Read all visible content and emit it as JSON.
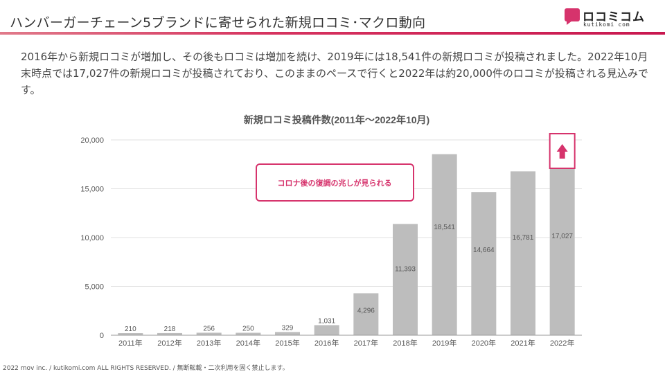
{
  "header": {
    "title": "ハンバーガーチェーン5ブランドに寄せられた新規ロコミ･マクロ動向",
    "logo_text": "ロコミコム",
    "logo_sub": "kutikomi com",
    "accent_color": "#d6336c"
  },
  "body": {
    "text": "2016年から新規ロコミが増加し、その後もロコミは増加を続け、2019年には18,541件の新規ロコミが投稿されました。2022年10月末時点では17,027件の新規ロコミが投稿されており、このままのペースで行くと2022年は約20,000件のロコミが投稿される見込みです。"
  },
  "chart_data": {
    "type": "bar",
    "title": "新規ロコミ投稿件数(2011年～2022年10月)",
    "categories": [
      "2011年",
      "2012年",
      "2013年",
      "2014年",
      "2015年",
      "2016年",
      "2017年",
      "2018年",
      "2019年",
      "2020年",
      "2021年",
      "2022年"
    ],
    "values": [
      210,
      218,
      256,
      250,
      329,
      1031,
      4296,
      11393,
      18541,
      14664,
      16781,
      17027
    ],
    "data_labels": [
      "210",
      "218",
      "256",
      "250",
      "329",
      "1,031",
      "4,296",
      "11,393",
      "18,541",
      "14,664",
      "16,781",
      "17,027"
    ],
    "ylim": [
      0,
      20000
    ],
    "yticks": [
      0,
      5000,
      10000,
      15000,
      20000
    ],
    "ytick_labels": [
      "0",
      "5,000",
      "10,000",
      "15,000",
      "20,000"
    ],
    "xlabel": "",
    "ylabel": "",
    "grid": true,
    "bar_color": "#bdbdbd",
    "highlight_color": "#d6336c",
    "annotation": "コロナ後の復調の兆しが見られる",
    "highlight_category": "2022年",
    "highlight_icon": "up-arrow-icon"
  },
  "footer": {
    "text": "2022 mov inc. / kutikomi.com ALL RIGHTS RESERVED. / 無断転載・二次利用を固く禁止します。"
  }
}
